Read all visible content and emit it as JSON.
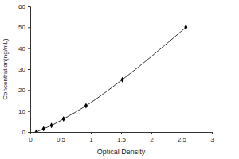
{
  "chart_data": {
    "type": "line",
    "x_label": "Optical Density",
    "y_label": "Concentration(ng/mL)",
    "x": [
      0.1,
      0.22,
      0.35,
      0.55,
      0.92,
      1.52,
      2.57
    ],
    "values": [
      0,
      1.56,
      3.12,
      6.25,
      12.5,
      25,
      50
    ],
    "color": "#000000",
    "marker": "diamond",
    "line_style": "solid",
    "xlim": [
      0,
      3
    ],
    "xticks": [
      0,
      0.5,
      1,
      1.5,
      2,
      2.5,
      3
    ],
    "ylim": [
      0,
      60
    ],
    "yticks": [
      0,
      10,
      20,
      30,
      40,
      50,
      60
    ],
    "grid": false
  }
}
